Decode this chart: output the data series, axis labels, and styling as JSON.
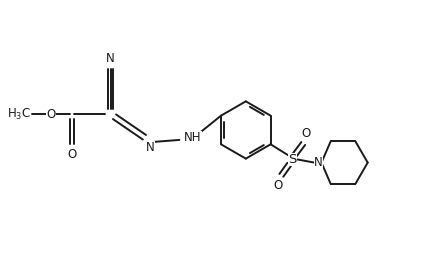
{
  "bg_color": "#ffffff",
  "line_color": "#1a1a1a",
  "line_width": 1.4,
  "font_size": 8.5,
  "fig_width": 4.24,
  "fig_height": 2.54,
  "dpi": 100,
  "xlim": [
    0,
    10.6
  ],
  "ylim": [
    0,
    6.35
  ]
}
